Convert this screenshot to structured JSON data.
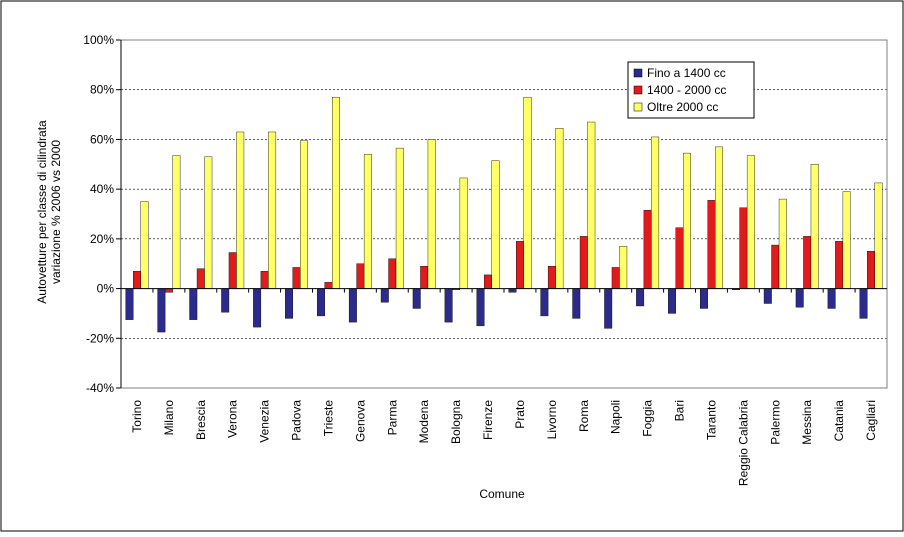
{
  "chart_data": {
    "type": "bar",
    "title": "",
    "xlabel": "Comune",
    "ylabel_line1": "Autovetture per classe di cilindrata",
    "ylabel_line2": "variazione % 2006 vs 2000",
    "ylim": [
      -40,
      100
    ],
    "yticks": [
      -40,
      -20,
      0,
      20,
      40,
      60,
      80,
      100
    ],
    "ytick_labels": [
      "-40%",
      "-20%",
      "0%",
      "20%",
      "40%",
      "60%",
      "80%",
      "100%"
    ],
    "grid": true,
    "legend_position": "top-right",
    "categories": [
      "Torino",
      "Milano",
      "Brescia",
      "Verona",
      "Venezia",
      "Padova",
      "Trieste",
      "Genova",
      "Parma",
      "Modena",
      "Bologna",
      "Firenze",
      "Prato",
      "Livorno",
      "Roma",
      "Napoli",
      "Foggia",
      "Bari",
      "Taranto",
      "Reggio Calabria",
      "Palermo",
      "Messina",
      "Catania",
      "Cagliari"
    ],
    "series": [
      {
        "name": "Fino a 1400 cc",
        "color": "#2b2b8c",
        "values": [
          -12.5,
          -17.5,
          -12.5,
          -9.5,
          -15.5,
          -12,
          -11,
          -13.5,
          -5.5,
          -8,
          -13.5,
          -15,
          -1.5,
          -11,
          -12,
          -16,
          -7,
          -10,
          -8,
          -0.5,
          -6,
          -7.5,
          -8,
          -12
        ]
      },
      {
        "name": "1400 - 2000 cc",
        "color": "#e31a1c",
        "values": [
          7,
          -1.5,
          8,
          14.5,
          7,
          8.5,
          2.5,
          10,
          12,
          9,
          -0.5,
          5.5,
          19,
          9,
          21,
          8.5,
          31.5,
          24.5,
          35.5,
          32.5,
          17.5,
          21,
          19,
          15
        ]
      },
      {
        "name": "Oltre 2000 cc",
        "color": "#ffff66",
        "values": [
          35,
          53.5,
          53,
          63,
          63,
          59.5,
          77,
          54,
          56.5,
          60,
          44.5,
          51.5,
          77,
          64.5,
          67,
          17,
          61,
          54.5,
          57,
          53.5,
          36,
          50,
          39,
          42.5
        ]
      }
    ]
  }
}
